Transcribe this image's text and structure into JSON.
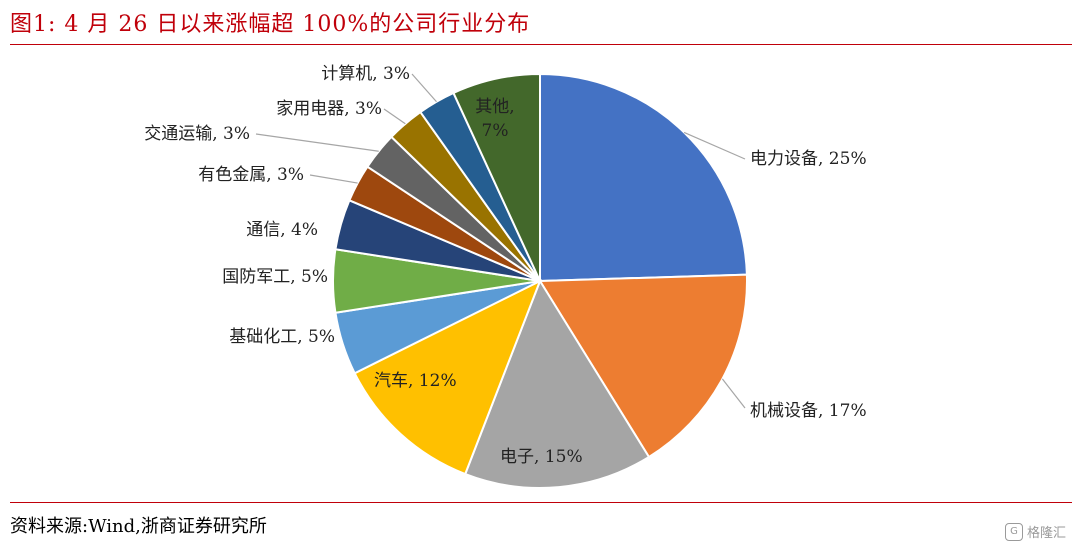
{
  "title": "图1:   4 月 26 日以来涨幅超 100%的公司行业分布",
  "source": "资料来源:Wind,浙商证券研究所",
  "watermark": {
    "logo": "G",
    "text": "格隆汇"
  },
  "colors": {
    "accent": "#c0000a"
  },
  "chart_data": {
    "type": "pie",
    "unit": "%",
    "slices": [
      {
        "label": "电力设备",
        "value": 25,
        "color": "#4472c4",
        "display": "电力设备, 25%"
      },
      {
        "label": "机械设备",
        "value": 17,
        "color": "#ed7d31",
        "display": "机械设备, 17%"
      },
      {
        "label": "电子",
        "value": 15,
        "color": "#a5a5a5",
        "display": "电子, 15%"
      },
      {
        "label": "汽车",
        "value": 12,
        "color": "#ffc000",
        "display": "汽车, 12%"
      },
      {
        "label": "基础化工",
        "value": 5,
        "color": "#5b9bd5",
        "display": "基础化工, 5%"
      },
      {
        "label": "国防军工",
        "value": 5,
        "color": "#70ad47",
        "display": "国防军工, 5%"
      },
      {
        "label": "通信",
        "value": 4,
        "color": "#264478",
        "display": "通信, 4%"
      },
      {
        "label": "有色金属",
        "value": 3,
        "color": "#9e480e",
        "display": "有色金属, 3%"
      },
      {
        "label": "交通运输",
        "value": 3,
        "color": "#636363",
        "display": "交通运输, 3%"
      },
      {
        "label": "家用电器",
        "value": 3,
        "color": "#997300",
        "display": "家用电器, 3%"
      },
      {
        "label": "计算机",
        "value": 3,
        "color": "#255e91",
        "display": "计算机, 3%"
      },
      {
        "label": "其他",
        "value": 7,
        "color": "#43682b",
        "display_lines": [
          "其他,",
          "7%"
        ]
      }
    ]
  }
}
